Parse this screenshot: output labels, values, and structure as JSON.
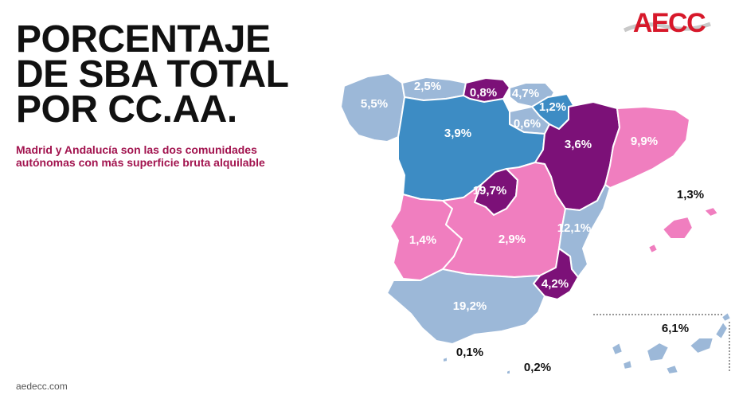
{
  "header": {
    "title_lines": [
      "PORCENTAJE",
      "DE SBA TOTAL",
      "POR CC.AA."
    ],
    "subtitle_lines": [
      "Madrid y Andalucía son las dos comunidades",
      "autónomas con más superficie bruta alquilable"
    ]
  },
  "logo": {
    "text": "AECC",
    "color": "#d7182a"
  },
  "footer": {
    "url": "aedecc.com"
  },
  "colors": {
    "light_blue": "#9cb8d8",
    "mid_blue": "#3d8cc4",
    "pink": "#f07ebf",
    "purple": "#7c1178",
    "label_light": "#ffffff",
    "label_dark": "#111111"
  },
  "regions": [
    {
      "name": "Galicia",
      "value": "5,5%"
    },
    {
      "name": "Asturias",
      "value": "2,5%"
    },
    {
      "name": "Cantabria",
      "value": "0,8%"
    },
    {
      "name": "País Vasco",
      "value": "4,7%"
    },
    {
      "name": "Navarra",
      "value": "1,2%"
    },
    {
      "name": "La Rioja",
      "value": "0,6%"
    },
    {
      "name": "Castilla y León",
      "value": "3,9%"
    },
    {
      "name": "Aragón",
      "value": "3,6%"
    },
    {
      "name": "Cataluña",
      "value": "9,9%"
    },
    {
      "name": "Madrid",
      "value": "19,7%"
    },
    {
      "name": "Extremadura",
      "value": "1,4%"
    },
    {
      "name": "Castilla-La Mancha",
      "value": "2,9%"
    },
    {
      "name": "Comunidad Valenciana",
      "value": "12,1%"
    },
    {
      "name": "Murcia",
      "value": "4,2%"
    },
    {
      "name": "Andalucía",
      "value": "19,2%"
    },
    {
      "name": "Islas Baleares",
      "value": "1,3%"
    },
    {
      "name": "Islas Canarias",
      "value": "6,1%"
    },
    {
      "name": "Ceuta",
      "value": "0,1%"
    },
    {
      "name": "Melilla",
      "value": "0,2%"
    }
  ]
}
